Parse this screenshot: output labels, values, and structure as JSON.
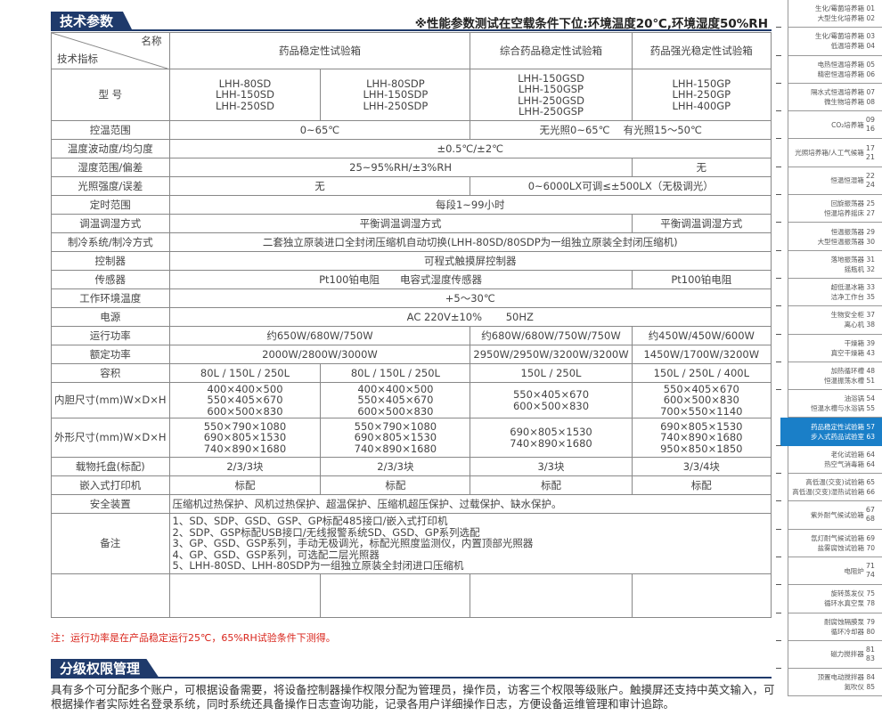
{
  "section1": {
    "title": "技术参数",
    "note": "※性能参数测试在空载条件下位:环境温度20℃,环境湿度50%RH"
  },
  "table": {
    "corner_name": "名称",
    "corner_index": "技术指标",
    "products": [
      "药品稳定性试验箱",
      "综合药品稳定性试验箱",
      "药品强光稳定性试验箱"
    ],
    "model_label": "型 号",
    "models": [
      [
        "LHH-80SD",
        "LHH-150SD",
        "LHH-250SD"
      ],
      [
        "LHH-80SDP",
        "LHH-150SDP",
        "LHH-250SDP"
      ],
      [
        "LHH-150GSD",
        "LHH-150GSP",
        "LHH-250GSD",
        "LHH-250GSP"
      ],
      [
        "LHH-150GP",
        "LHH-250GP",
        "LHH-400GP"
      ]
    ],
    "rows": {
      "temp_range": {
        "label": "控温范围",
        "a": "0~65℃",
        "b": "无光照0~65℃　 有光照15～50℃"
      },
      "fluct": {
        "label": "温度波动度/均匀度",
        "a": "±0.5℃/±2℃"
      },
      "humid": {
        "label": "湿度范围/偏差",
        "a": "25~95%RH/±3%RH",
        "b": "无"
      },
      "light": {
        "label": "光照强度/误差",
        "a": "无",
        "b": "0~6000LX可调≤±500LX（无极调光）"
      },
      "timer": {
        "label": "定时范围",
        "a": "每段1~99小时"
      },
      "mode": {
        "label": "调温调湿方式",
        "a": "平衡调温调湿方式",
        "b": "平衡调温调湿方式"
      },
      "cooling": {
        "label": "制冷系统/制冷方式",
        "a": "二套独立原装进口全封闭压缩机自动切换(LHH-80SD/80SDP为一组独立原装全封闭压缩机)"
      },
      "controller": {
        "label": "控制器",
        "a": "可程式触摸屏控制器"
      },
      "sensor": {
        "label": "传感器",
        "a": "Pt100铂电阻　　电容式湿度传感器",
        "b": "Pt100铂电阻"
      },
      "env": {
        "label": "工作环境温度",
        "a": "+5～30℃"
      },
      "power": {
        "label": "电源",
        "a": "AC 220V±10%　　 50HZ"
      },
      "run_power": {
        "label": "运行功率",
        "a": "约650W/680W/750W",
        "b": "约680W/680W/750W/750W",
        "c": "约450W/450W/600W"
      },
      "rated_power": {
        "label": "额定功率",
        "a": "2000W/2800W/3000W",
        "b": "2950W/2950W/3200W/3200W",
        "c": "1450W/1700W/3200W"
      },
      "volume": {
        "label": "容积",
        "v": [
          "80L / 150L / 250L",
          "80L / 150L / 250L",
          "150L / 250L",
          "150L / 250L / 400L"
        ]
      },
      "inner": {
        "label": "内胆尺寸(mm)W×D×H",
        "v": [
          [
            "400×400×500",
            "550×405×670",
            "600×500×830"
          ],
          [
            "400×400×500",
            "550×405×670",
            "600×500×830"
          ],
          [
            "550×405×670",
            "600×500×830"
          ],
          [
            "550×405×670",
            "600×500×830",
            "700×550×1140"
          ]
        ]
      },
      "outer": {
        "label": "外形尺寸(mm)W×D×H",
        "v": [
          [
            "550×790×1080",
            "690×805×1530",
            "740×890×1680"
          ],
          [
            "550×790×1080",
            "690×805×1530",
            "740×890×1680"
          ],
          [
            "690×805×1530",
            "740×890×1680"
          ],
          [
            "690×805×1530",
            "740×890×1680",
            "950×850×1850"
          ]
        ]
      },
      "shelves": {
        "label": "载物托盘(标配)",
        "v": [
          "2/3/3块",
          "2/3/3块",
          "3/3块",
          "3/3/4块"
        ]
      },
      "printer": {
        "label": "嵌入式打印机",
        "v": [
          "标配",
          "标配",
          "标配",
          "标配"
        ]
      },
      "safety": {
        "label": "安全装置",
        "a": "压缩机过热保护、风机过热保护、超温保护、压缩机超压保护、过载保护、缺水保护。"
      },
      "remarks": {
        "label": "备注",
        "lines": [
          "1、SD、SDP、GSD、GSP、GP标配485接口/嵌入式打印机",
          "2、SDP、GSP标配USB接口/无线报警系统SD、GSD、GP系列选配",
          "3、GP、GSD、GSP系列，手动无极调光，标配光照度监测仪，内置顶部光照器",
          "4、GP、GSD、GSP系列，可选配二层光照器",
          "5、LHH-80SD、LHH-80SDP为一组独立原装全封闭进口压缩机"
        ]
      }
    }
  },
  "footnote": "注：运行功率是在产品稳定运行25℃，65%RH试验条件下测得。",
  "section2": {
    "title": "分级权限管理",
    "text": "具有多个可分配多个账户，可根据设备需要，将设备控制器操作权限分配为管理员，操作员，访客三个权限等级账户。触摸屏还支持中英文输入，可根据操作者实际姓名登录系统，同时系统还具备操作日志查询功能，记录各用户详细操作日志，方便设备运维管理和审计追踪。"
  },
  "sidebar": {
    "active_color": "#1a7fc8",
    "items": [
      {
        "lines": [
          "生化/霉菌培养箱 01",
          "大型生化培养箱 02"
        ]
      },
      {
        "lines": [
          "生化/霉菌培养箱 03",
          "低温培养箱 04"
        ]
      },
      {
        "lines": [
          "电热恒温培养箱 05",
          "精密恒温培养箱 06"
        ]
      },
      {
        "lines": [
          "隔水式恒温培养箱 07",
          "微生物培养箱 08"
        ]
      },
      {
        "name": "CO₂培养箱",
        "nums": [
          "09",
          "16"
        ]
      },
      {
        "name": "光照培养箱/人工气候箱",
        "nums": [
          "17",
          "21"
        ]
      },
      {
        "name": "恒温恒湿箱",
        "nums": [
          "22",
          "24"
        ]
      },
      {
        "lines": [
          "回旋振荡器 25",
          "恒温培养摇床 27"
        ]
      },
      {
        "lines": [
          "恒温振荡器 29",
          "大型恒温振荡器 30"
        ]
      },
      {
        "lines": [
          "落地振荡器 31",
          "摇瓶机 32"
        ]
      },
      {
        "lines": [
          "超低温冰箱 33",
          "洁净工作台 35"
        ]
      },
      {
        "lines": [
          "生物安全柜 37",
          "离心机 38"
        ]
      },
      {
        "lines": [
          "干燥箱 39",
          "真空干燥箱 43"
        ]
      },
      {
        "lines": [
          "加热循环槽 48",
          "恒温振荡水槽 51"
        ]
      },
      {
        "lines": [
          "油浴锅 54",
          "恒温水槽与水浴锅 55"
        ]
      },
      {
        "lines": [
          "药品稳定性试验箱 57",
          "步入式药品试验室 63"
        ],
        "active": true
      },
      {
        "lines": [
          "老化试验箱 64",
          "热空气消毒箱 64"
        ]
      },
      {
        "lines": [
          "高低温(交变)试验箱 65",
          "高低温(交变)湿热试验箱 66"
        ]
      },
      {
        "name": "紫外耐气候试验箱",
        "nums": [
          "67",
          "68"
        ]
      },
      {
        "lines": [
          "氙灯耐气候试验箱 69",
          "盐雾腐蚀试验箱 70"
        ]
      },
      {
        "name": "电阻炉",
        "nums": [
          "71",
          "74"
        ]
      },
      {
        "lines": [
          "旋转蒸发仪 75",
          "循环水真空泵 78"
        ]
      },
      {
        "lines": [
          "耐腐蚀隔膜泵 79",
          "循环冷却器 80"
        ]
      },
      {
        "name": "磁力搅拌器",
        "nums": [
          "81",
          "83"
        ]
      },
      {
        "lines": [
          "顶置电动搅拌器 84",
          "氮吹仪 85"
        ]
      }
    ]
  }
}
